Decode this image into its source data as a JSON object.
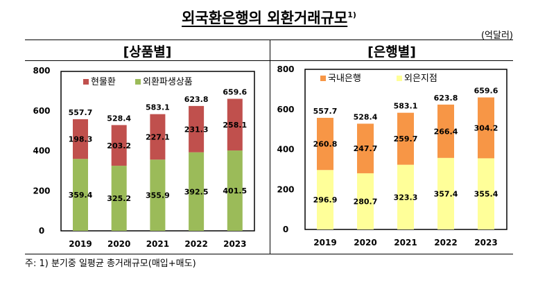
{
  "title": "외국환은행의 외환거래규모",
  "title_footnote": "1)",
  "unit": "(억달러)",
  "note": "주:  1) 분기중 일평균 총거래규모(매입+매도)",
  "sections": {
    "left": "[상품별]",
    "right": "[은행별]"
  },
  "chart_data": [
    {
      "type": "bar",
      "stacked": true,
      "categories": [
        "2019",
        "2020",
        "2021",
        "2022",
        "2023"
      ],
      "series": [
        {
          "name": "외환파생상품",
          "values": [
            359.4,
            325.2,
            355.9,
            392.5,
            401.5
          ],
          "color": "#9bbb59"
        },
        {
          "name": "현물환",
          "values": [
            198.3,
            203.2,
            227.1,
            231.3,
            258.1
          ],
          "color": "#c0504d"
        }
      ],
      "totals": [
        557.7,
        528.4,
        583.1,
        623.8,
        659.6
      ],
      "legend_order": [
        "현물환",
        "외환파생상품"
      ],
      "legend": "top-left",
      "yticks": [
        "0",
        "200",
        "400",
        "600",
        "800"
      ],
      "ylim": [
        0,
        800
      ],
      "grid": false
    },
    {
      "type": "bar",
      "stacked": true,
      "categories": [
        "2019",
        "2020",
        "2021",
        "2022",
        "2023"
      ],
      "series": [
        {
          "name": "외은지점",
          "values": [
            296.9,
            280.7,
            323.3,
            357.4,
            355.4
          ],
          "color": "#ffff99"
        },
        {
          "name": "국내은행",
          "values": [
            260.8,
            247.7,
            259.7,
            266.4,
            304.2
          ],
          "color": "#f79646"
        }
      ],
      "totals": [
        557.7,
        528.4,
        583.1,
        623.8,
        659.6
      ],
      "legend_order": [
        "국내은행",
        "외은지점"
      ],
      "legend": "top-left",
      "yticks": [
        "0",
        "200",
        "400",
        "600",
        "800"
      ],
      "ylim": [
        0,
        800
      ],
      "grid": false
    }
  ]
}
